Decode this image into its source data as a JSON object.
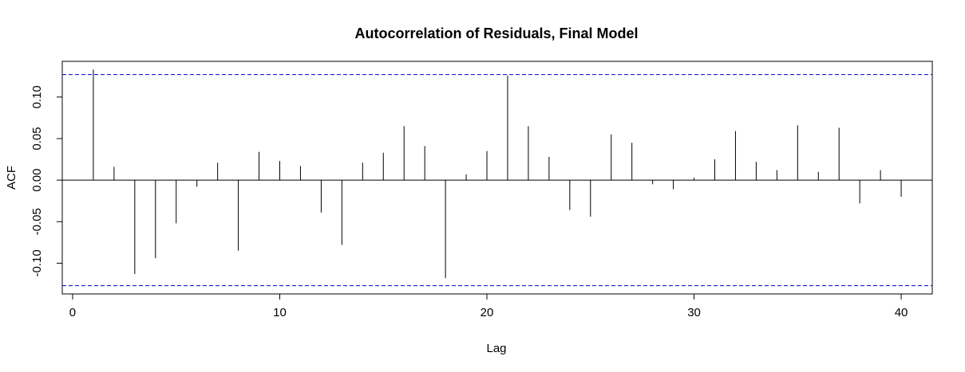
{
  "chart_data": {
    "type": "bar",
    "title": "Autocorrelation of Residuals, Final Model",
    "xlabel": "Lag",
    "ylabel": "ACF",
    "xlim": [
      -0.5,
      41.5
    ],
    "ylim": [
      -0.137,
      0.143
    ],
    "xticks": [
      0,
      10,
      20,
      30,
      40
    ],
    "yticks": [
      -0.1,
      -0.05,
      0.0,
      0.05,
      0.1
    ],
    "ytick_labels": [
      "-0.10",
      "-0.05",
      "0.00",
      "0.05",
      "0.10"
    ],
    "lags": [
      1,
      2,
      3,
      4,
      5,
      6,
      7,
      8,
      9,
      10,
      11,
      12,
      13,
      14,
      15,
      16,
      17,
      18,
      19,
      20,
      21,
      22,
      23,
      24,
      25,
      26,
      27,
      28,
      29,
      30,
      31,
      32,
      33,
      34,
      35,
      36,
      37,
      38,
      39,
      40
    ],
    "values": [
      0.133,
      0.016,
      -0.113,
      -0.094,
      -0.052,
      -0.008,
      0.021,
      -0.085,
      0.034,
      0.023,
      0.017,
      -0.039,
      -0.078,
      0.021,
      0.033,
      0.065,
      0.041,
      -0.118,
      0.007,
      0.035,
      0.126,
      0.065,
      0.028,
      -0.036,
      -0.044,
      0.055,
      0.045,
      -0.005,
      -0.011,
      0.003,
      0.025,
      0.059,
      0.022,
      0.012,
      0.066,
      0.01,
      0.063,
      -0.028,
      0.012,
      -0.02
    ],
    "confidence_bound": 0.127,
    "bar_color": "#000000",
    "bound_color": "#0000cc",
    "grid": false,
    "legend": "none"
  }
}
